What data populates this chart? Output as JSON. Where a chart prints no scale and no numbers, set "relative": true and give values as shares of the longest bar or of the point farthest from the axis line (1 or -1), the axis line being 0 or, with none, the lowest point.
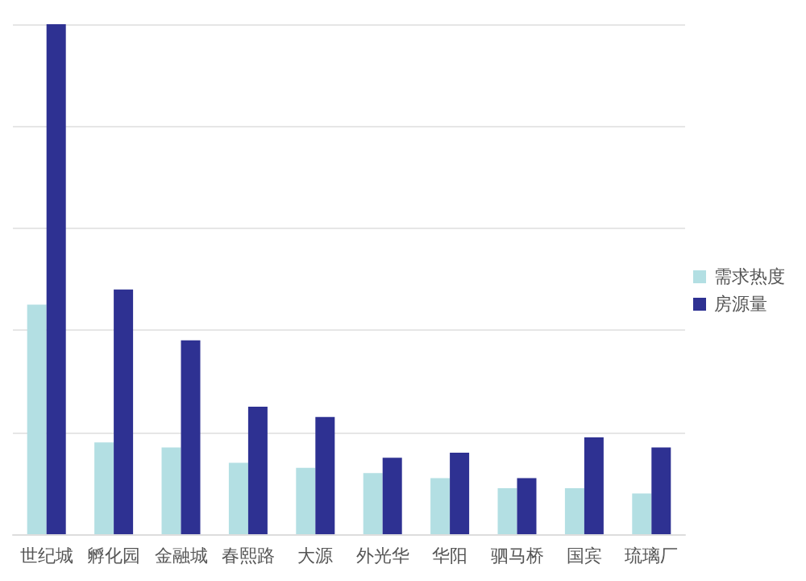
{
  "chart_data": {
    "type": "bar",
    "relative": true,
    "grid": "y",
    "legend": "right",
    "categories": [
      "世纪城",
      "孵化园",
      "金融城",
      "春熙路",
      "大源",
      "外光华",
      "华阳",
      "驷马桥",
      "国宾",
      "琉璃厂"
    ],
    "series": [
      {
        "name": "需求热度",
        "color": "#b3dfe3",
        "values": [
          0.45,
          0.18,
          0.17,
          0.14,
          0.13,
          0.12,
          0.11,
          0.09,
          0.09,
          0.08
        ]
      },
      {
        "name": "房源量",
        "color": "#2e3192",
        "values": [
          1,
          0.48,
          0.38,
          0.25,
          0.23,
          0.15,
          0.16,
          0.11,
          0.19,
          0.17
        ]
      }
    ]
  }
}
